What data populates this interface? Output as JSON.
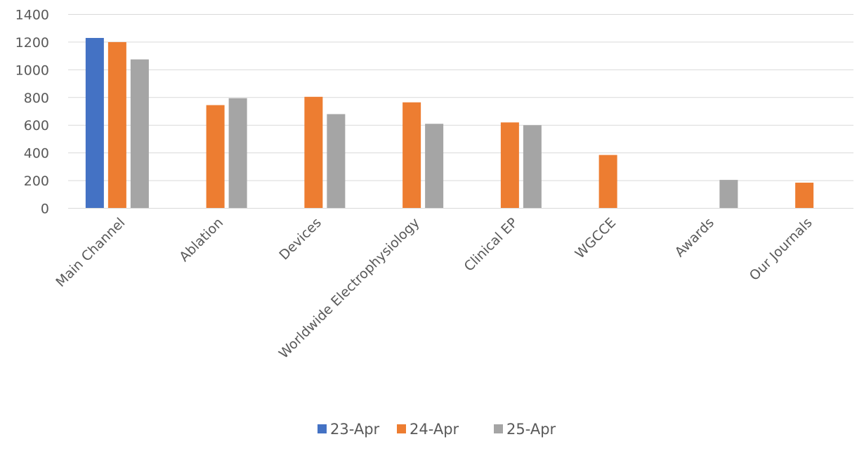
{
  "chart_data": {
    "type": "bar",
    "categories": [
      "Main Channel",
      "Ablation",
      "Devices",
      "Worldwide Electrophysiology",
      "Clinical EP",
      "WGCCE",
      "Awards",
      "Our Journals"
    ],
    "series": [
      {
        "name": "23-Apr",
        "color": "#4472c4",
        "values": [
          1230,
          null,
          null,
          null,
          null,
          null,
          null,
          null
        ]
      },
      {
        "name": "24-Apr",
        "color": "#ed7d31",
        "values": [
          1200,
          745,
          805,
          765,
          620,
          385,
          null,
          185
        ]
      },
      {
        "name": "25-Apr",
        "color": "#a5a5a5",
        "values": [
          1075,
          795,
          680,
          610,
          600,
          null,
          205,
          null
        ]
      }
    ],
    "y_ticks": [
      "0",
      "200",
      "400",
      "600",
      "800",
      "1000",
      "1200",
      "1400"
    ],
    "ylim": [
      0,
      1400
    ],
    "grid": true,
    "legend_position": "bottom"
  }
}
